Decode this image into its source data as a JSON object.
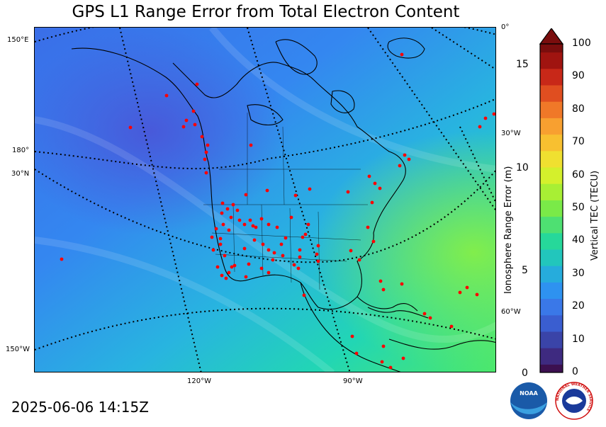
{
  "title": "GPS L1 Range Error from Total Electron Content",
  "timestamp": "2025-06-06 14:15Z",
  "map": {
    "left_labels": [
      "150°E",
      "180°",
      "30°N",
      "150°W"
    ],
    "right_labels": [
      "0°",
      "30°W",
      "60°W"
    ],
    "bottom_labels": [
      "120°W",
      "90°W"
    ],
    "station_color": "#ff0000"
  },
  "range_axis": {
    "title": "Ionosphere Range Error (m)",
    "ticks": [
      "0",
      "5",
      "10",
      "15"
    ]
  },
  "colorbar": {
    "title": "Vertical TEC (TECU)",
    "ticks": [
      "0",
      "10",
      "20",
      "30",
      "40",
      "50",
      "60",
      "70",
      "80",
      "90",
      "100"
    ],
    "extend_color": "#7a0d0d"
  },
  "logos": {
    "noaa_text": "NOAA",
    "nws_text": "NATIONAL WEATHER SERVICE"
  }
}
